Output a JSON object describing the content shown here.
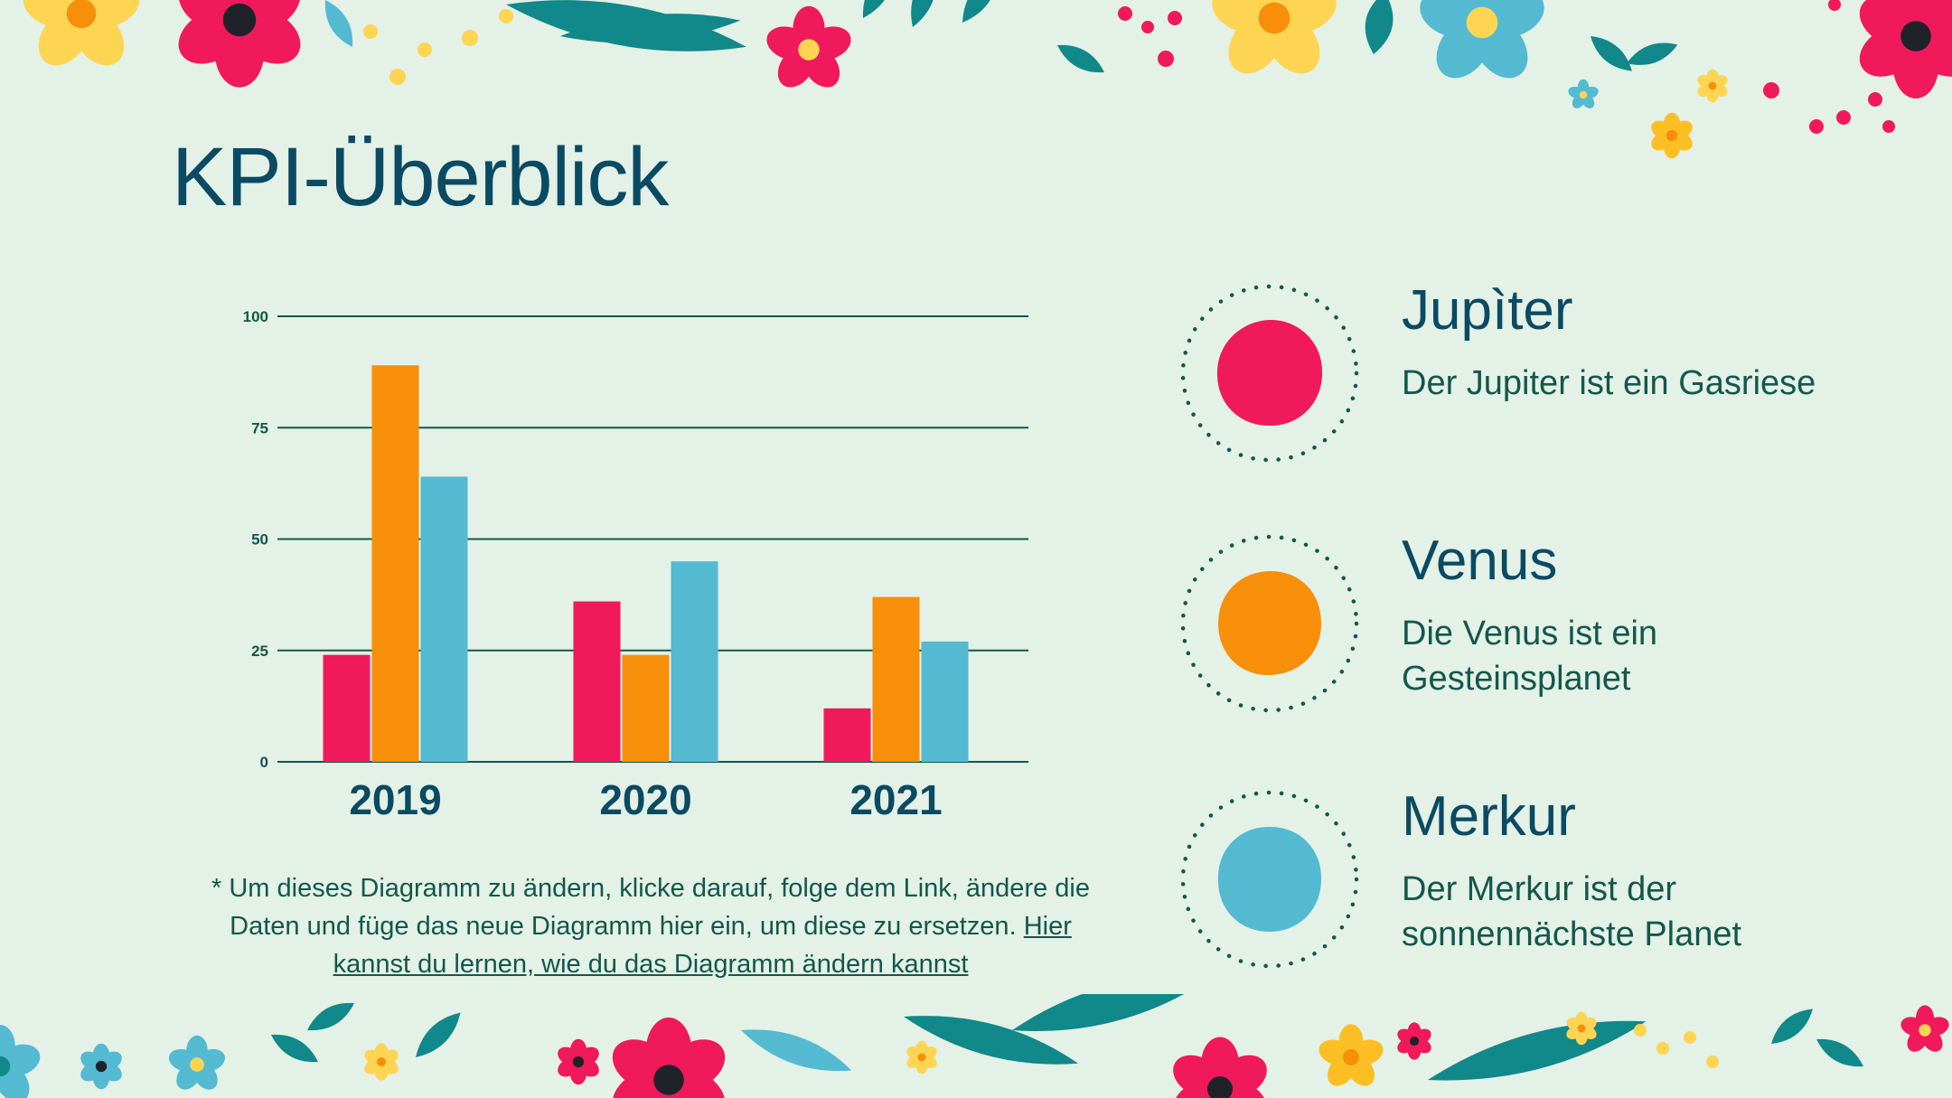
{
  "slide": {
    "title": "KPI-Überblick",
    "note_text": "* Um dieses Diagramm zu ändern, klicke darauf, folge dem Link, ändere die Daten und füge das neue Diagramm hier ein, um diese zu ersetzen.",
    "note_link": "Hier kannst du lernen, wie du das Diagramm ändern kannst"
  },
  "planets": [
    {
      "name": "Jupìter",
      "description": "Der Jupiter ist ein Gasriese",
      "color": "#f0195c"
    },
    {
      "name": "Venus",
      "description": "Die Venus ist ein Gesteinsplanet",
      "color": "#f78f0b"
    },
    {
      "name": "Merkur",
      "description": "Der Merkur ist der sonnennächste Planet",
      "color": "#53bad2"
    }
  ],
  "colors": {
    "background": "#e3f1e6",
    "title": "#0b4a63",
    "text": "#14574b",
    "pink": "#f0195c",
    "orange": "#f78f0b",
    "blue": "#53bad2",
    "teal": "#11888a",
    "yellow": "#fdd553"
  },
  "chart_data": {
    "type": "bar",
    "categories": [
      "2019",
      "2020",
      "2021"
    ],
    "series": [
      {
        "values": [
          24,
          36,
          12
        ],
        "color": "#f0195c"
      },
      {
        "values": [
          89,
          24,
          37
        ],
        "color": "#f78f0b"
      },
      {
        "values": [
          64,
          45,
          27
        ],
        "color": "#53bad2"
      }
    ],
    "yticks": [
      0,
      25,
      50,
      75,
      100
    ],
    "ylim": [
      0,
      100
    ],
    "grid": true,
    "legend": "none"
  }
}
